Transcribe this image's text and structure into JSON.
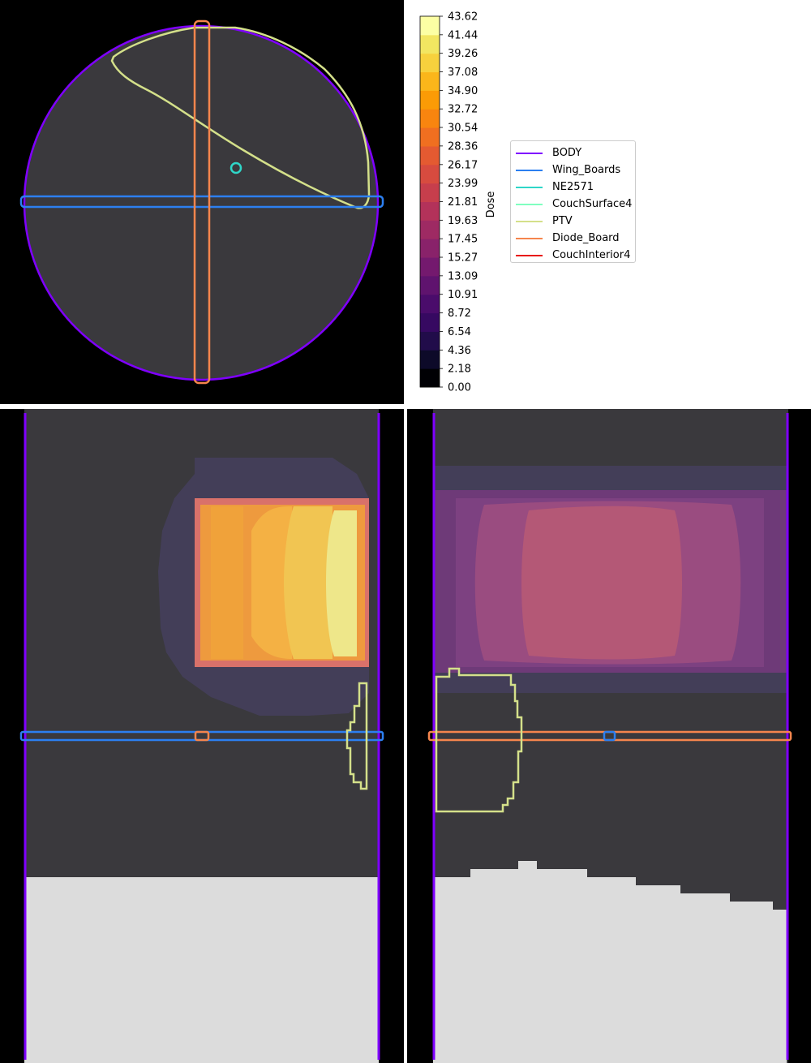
{
  "chart_data": [
    {
      "type": "heatmap",
      "view": "axial",
      "colorbar": {
        "label": "Dose",
        "ticks": [
          "0.00",
          "2.18",
          "4.36",
          "6.54",
          "8.72",
          "10.91",
          "13.09",
          "15.27",
          "17.45",
          "19.63",
          "21.81",
          "23.99",
          "26.17",
          "28.36",
          "30.54",
          "32.72",
          "34.90",
          "37.08",
          "39.26",
          "41.44",
          "43.62"
        ],
        "range": [
          0.0,
          43.62
        ],
        "levels": 20,
        "colormap": "inferno-like",
        "level_colors": [
          "#000004",
          "#0d0a29",
          "#210c4a",
          "#360961",
          "#4a0c6b",
          "#5f136e",
          "#74196e",
          "#89226a",
          "#9e2a63",
          "#b3325a",
          "#c73e4c",
          "#d74b3f",
          "#e45a31",
          "#f06f20",
          "#f8850f",
          "#fb9b06",
          "#fbb61a",
          "#f7d13d",
          "#f2e661",
          "#fcffa4"
        ]
      },
      "legend": {
        "placement": "center-right",
        "entries": [
          {
            "name": "BODY",
            "color": "#7f00ff"
          },
          {
            "name": "Wing_Boards",
            "color": "#2c7ff0"
          },
          {
            "name": "NE2571",
            "color": "#2fd6c8"
          },
          {
            "name": "CouchSurface4",
            "color": "#80ffc0"
          },
          {
            "name": "PTV",
            "color": "#d4e08a"
          },
          {
            "name": "Diode_Board",
            "color": "#f5854d"
          },
          {
            "name": "CouchInterior4",
            "color": "#e8180f"
          }
        ]
      }
    },
    {
      "type": "heatmap",
      "view": "coronal",
      "dose_peak_region": "right side, up to ~41"
    },
    {
      "type": "heatmap",
      "view": "sagittal",
      "dose_peak_region": "center, up to ~24"
    }
  ],
  "colors": {
    "background": "#000000",
    "patient_tissue": "#3a393d",
    "couch": "#dcdcdc"
  }
}
